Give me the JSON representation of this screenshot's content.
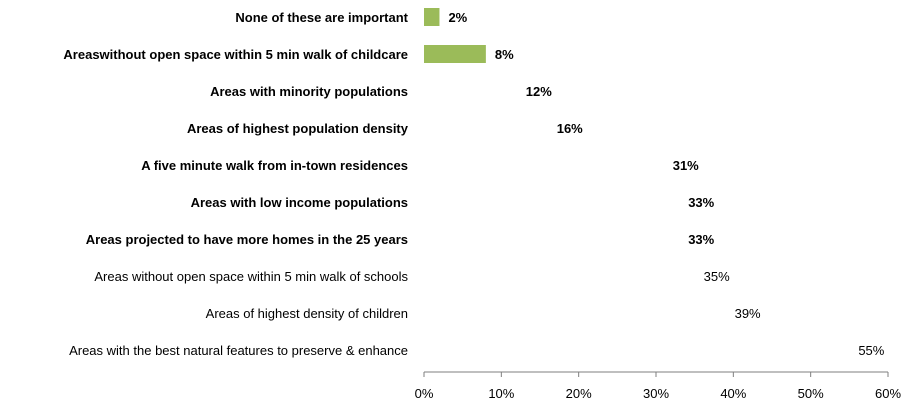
{
  "chart_data": {
    "type": "bar",
    "orientation": "horizontal",
    "categories": [
      "None of these are important",
      "Areaswithout open space within 5 min walk of childcare",
      "Areas with  minority populations",
      "Areas of highest population density",
      "A five minute walk from  in-town residences",
      "Areas with low income populations",
      "Areas projected to have more homes in the 25 years",
      "Areas without open space within 5 min walk of schools",
      "Areas of highest density of children",
      "Areas with the best natural features to preserve & enhance"
    ],
    "values": [
      2,
      8,
      12,
      16,
      31,
      33,
      33,
      35,
      39,
      55
    ],
    "value_labels": [
      "2%",
      "8%",
      "12%",
      "16%",
      "31%",
      "33%",
      "33%",
      "35%",
      "39%",
      "55%"
    ],
    "bar_visible": [
      true,
      true,
      false,
      false,
      false,
      false,
      false,
      false,
      false,
      false
    ],
    "label_bold": [
      true,
      true,
      true,
      true,
      true,
      true,
      true,
      false,
      false,
      false
    ],
    "bar_color": "#9bbb59",
    "xlim": [
      0,
      60
    ],
    "x_ticks": [
      0,
      10,
      20,
      30,
      40,
      50,
      60
    ],
    "x_tick_labels": [
      "0%",
      "10%",
      "20%",
      "30%",
      "40%",
      "50%",
      "60%"
    ],
    "grid": false,
    "legend": "none"
  }
}
